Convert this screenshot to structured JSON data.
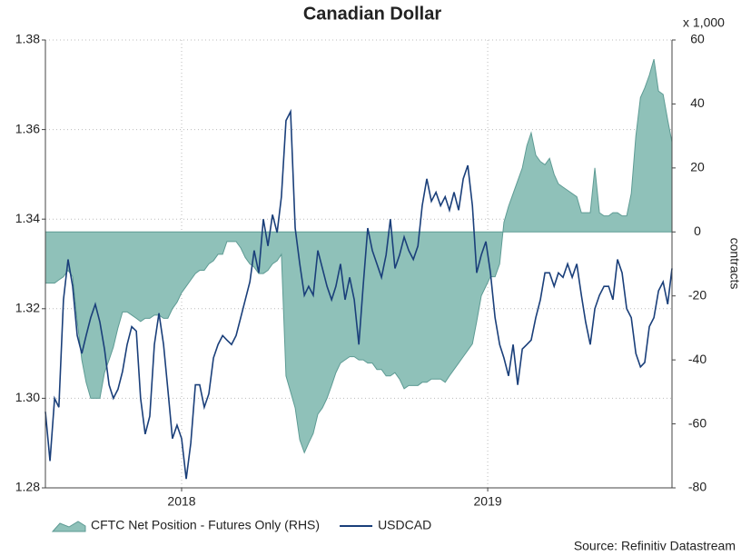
{
  "chart_data": {
    "type": "combo",
    "title": "Canadian Dollar",
    "y2_unit": "x 1,000",
    "y2_label": "contracts",
    "source": "Source: Refinitiv Datastream",
    "xlim": [
      2017.555,
      2019.602
    ],
    "xticks": [
      2018,
      2019
    ],
    "ylim": [
      1.28,
      1.38
    ],
    "yticks": [
      1.28,
      {
        "value": 1.3,
        "label": "1.30"
      },
      1.32,
      1.34,
      1.36,
      1.38
    ],
    "y2lim": [
      -80,
      60
    ],
    "y2ticks": [
      -80,
      -60,
      -40,
      -20,
      0,
      20,
      40,
      60
    ],
    "grid": true,
    "x": [
      2017.555,
      2017.57,
      2017.585,
      2017.599,
      2017.614,
      2017.629,
      2017.644,
      2017.659,
      2017.674,
      2017.688,
      2017.703,
      2017.718,
      2017.733,
      2017.748,
      2017.763,
      2017.777,
      2017.792,
      2017.807,
      2017.822,
      2017.837,
      2017.852,
      2017.866,
      2017.881,
      2017.896,
      2017.911,
      2017.926,
      2017.941,
      2017.955,
      2017.97,
      2017.985,
      2018.0,
      2018.015,
      2018.03,
      2018.045,
      2018.059,
      2018.074,
      2018.089,
      2018.104,
      2018.119,
      2018.134,
      2018.148,
      2018.163,
      2018.178,
      2018.193,
      2018.208,
      2018.223,
      2018.237,
      2018.252,
      2018.267,
      2018.282,
      2018.297,
      2018.312,
      2018.326,
      2018.341,
      2018.356,
      2018.371,
      2018.386,
      2018.401,
      2018.415,
      2018.43,
      2018.445,
      2018.46,
      2018.475,
      2018.49,
      2018.504,
      2018.519,
      2018.534,
      2018.549,
      2018.564,
      2018.579,
      2018.593,
      2018.608,
      2018.623,
      2018.638,
      2018.653,
      2018.668,
      2018.682,
      2018.697,
      2018.712,
      2018.727,
      2018.742,
      2018.757,
      2018.772,
      2018.786,
      2018.801,
      2018.816,
      2018.831,
      2018.846,
      2018.861,
      2018.875,
      2018.89,
      2018.905,
      2018.92,
      2018.935,
      2018.95,
      2018.964,
      2018.979,
      2018.994,
      2019.009,
      2019.024,
      2019.039,
      2019.053,
      2019.068,
      2019.083,
      2019.098,
      2019.113,
      2019.128,
      2019.142,
      2019.157,
      2019.172,
      2019.187,
      2019.202,
      2019.217,
      2019.231,
      2019.246,
      2019.261,
      2019.276,
      2019.291,
      2019.306,
      2019.32,
      2019.335,
      2019.35,
      2019.365,
      2019.38,
      2019.395,
      2019.409,
      2019.424,
      2019.439,
      2019.454,
      2019.469,
      2019.484,
      2019.499,
      2019.513,
      2019.528,
      2019.543,
      2019.558,
      2019.573,
      2019.588,
      2019.602
    ],
    "series": [
      {
        "name": "CFTC Net Position - Futures Only (RHS)",
        "type": "area",
        "axis": "y2",
        "color": "#8fc1b9",
        "values": [
          -16,
          -16,
          -16,
          -15,
          -14,
          -12,
          -14,
          -28,
          -40,
          -47,
          -52,
          -52,
          -52,
          -44,
          -40,
          -36,
          -30,
          -25,
          -25,
          -26,
          -27,
          -28,
          -27,
          -27,
          -26,
          -26,
          -27,
          -27,
          -24,
          -22,
          -19,
          -17,
          -15,
          -13,
          -12,
          -12,
          -10,
          -9,
          -7,
          -7,
          -3,
          -3,
          -3,
          -5,
          -8,
          -10,
          -11,
          -13,
          -13,
          -12,
          -10,
          -9,
          -7,
          -45,
          -50,
          -55,
          -65,
          -69,
          -66,
          -63,
          -57,
          -55,
          -52,
          -48,
          -44,
          -41,
          -40,
          -39,
          -39,
          -40,
          -40,
          -41,
          -41,
          -43,
          -43,
          -45,
          -45,
          -44,
          -46,
          -49,
          -48,
          -48,
          -48,
          -47,
          -47,
          -46,
          -46,
          -46,
          -47,
          -45,
          -43,
          -41,
          -39,
          -37,
          -35,
          -28,
          -20,
          -17,
          -14,
          -14,
          -10,
          3,
          8,
          12,
          16,
          20,
          27,
          31,
          24,
          22,
          21,
          23,
          18,
          15,
          14,
          13,
          12,
          11,
          6,
          6,
          6,
          20,
          6,
          5,
          5,
          6,
          6,
          5,
          5,
          12,
          30,
          42,
          45,
          49,
          54,
          44,
          43,
          35,
          28
        ]
      },
      {
        "name": "USDCAD",
        "type": "line",
        "color": "#1a3f7a",
        "values": [
          1.297,
          1.286,
          1.3,
          1.298,
          1.322,
          1.331,
          1.325,
          1.314,
          1.31,
          1.314,
          1.318,
          1.321,
          1.317,
          1.311,
          1.303,
          1.3,
          1.302,
          1.306,
          1.312,
          1.316,
          1.315,
          1.3,
          1.292,
          1.296,
          1.312,
          1.319,
          1.312,
          1.302,
          1.291,
          1.294,
          1.291,
          1.282,
          1.29,
          1.303,
          1.303,
          1.298,
          1.301,
          1.309,
          1.312,
          1.314,
          1.313,
          1.312,
          1.314,
          1.318,
          1.322,
          1.326,
          1.333,
          1.328,
          1.34,
          1.334,
          1.341,
          1.337,
          1.345,
          1.362,
          1.364,
          1.338,
          1.33,
          1.323,
          1.325,
          1.323,
          1.333,
          1.329,
          1.325,
          1.322,
          1.325,
          1.33,
          1.322,
          1.327,
          1.322,
          1.312,
          1.325,
          1.338,
          1.333,
          1.33,
          1.327,
          1.332,
          1.34,
          1.329,
          1.332,
          1.336,
          1.333,
          1.331,
          1.334,
          1.343,
          1.349,
          1.344,
          1.346,
          1.343,
          1.345,
          1.342,
          1.346,
          1.342,
          1.349,
          1.352,
          1.343,
          1.328,
          1.332,
          1.335,
          1.328,
          1.318,
          1.312,
          1.309,
          1.305,
          1.312,
          1.303,
          1.311,
          1.312,
          1.313,
          1.318,
          1.322,
          1.328,
          1.328,
          1.325,
          1.328,
          1.327,
          1.33,
          1.327,
          1.33,
          1.323,
          1.317,
          1.312,
          1.32,
          1.323,
          1.325,
          1.325,
          1.322,
          1.331,
          1.328,
          1.32,
          1.318,
          1.31,
          1.307,
          1.308,
          1.316,
          1.318,
          1.324,
          1.326,
          1.321,
          1.329
        ]
      }
    ]
  }
}
